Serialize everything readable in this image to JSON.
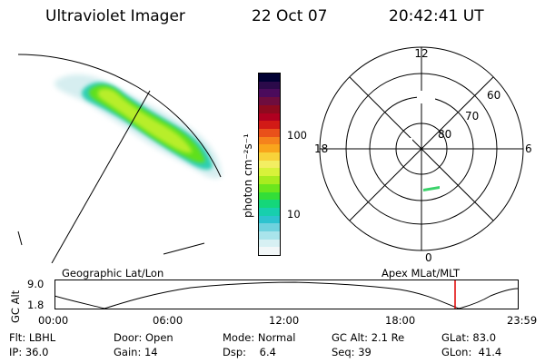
{
  "header": {
    "instrument": "Ultraviolet Imager",
    "date": "22 Oct 07",
    "time": "20:42:41 UT"
  },
  "colorbar": {
    "label": "photon cm⁻²s⁻¹",
    "ticks": [
      "100",
      "10"
    ],
    "colors": [
      "#000033",
      "#2b0a4a",
      "#4b0b5c",
      "#6e0d3e",
      "#8e0a1e",
      "#b00020",
      "#d21a16",
      "#e9501a",
      "#f5821c",
      "#f9a51c",
      "#f8d23a",
      "#f3ee62",
      "#d8f23a",
      "#a8ec1f",
      "#6be61d",
      "#33de38",
      "#14d77a",
      "#17cfae",
      "#2dc3cf",
      "#6fd2de",
      "#a9e4eb",
      "#d7f0f3",
      "#f2f7f8"
    ]
  },
  "polar": {
    "mlt_labels": [
      "12",
      "18",
      "6",
      "0"
    ],
    "lat_labels": [
      "60",
      "70",
      "80"
    ]
  },
  "timeline": {
    "ylabel": "GC Alt",
    "yticks": [
      "9.0",
      "1.8"
    ],
    "left_title": "Geographic Lat/Lon",
    "right_title": "Apex MLat/MLT",
    "xticks": [
      "00:00",
      "06:00",
      "12:00",
      "18:00",
      "23:59"
    ],
    "marker_color": "#e00000"
  },
  "info": {
    "filter": "Flt: LBHL",
    "door": "Door: Open",
    "mode": "Mode: Normal",
    "gc_alt": "GC Alt: 2.1 Re",
    "glat": "GLat: 83.0",
    "ip": "IP: 36.0",
    "gain": "Gain: 14",
    "dsp": "Dsp:    6.4",
    "seq": "Seq: 39",
    "glon": "GLon:  41.4"
  }
}
